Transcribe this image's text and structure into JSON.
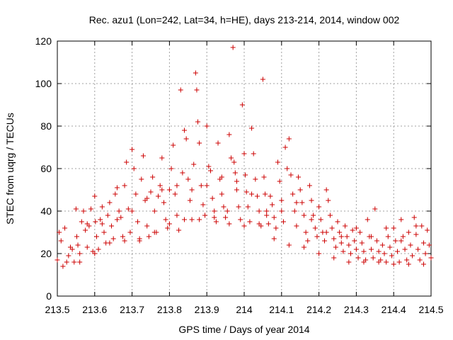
{
  "chart_data": {
    "type": "scatter",
    "title": "Rec. azu1 (Lon=242, Lat=34, h=HE), days 213-214, 2014, window 002",
    "xlabel": "GPS time / Days of year 2014",
    "ylabel": "STEC from uqrg / TECUs",
    "xlim": [
      213.5,
      214.5
    ],
    "ylim": [
      0,
      120
    ],
    "xticks": [
      "213.5",
      "213.6",
      "213.7",
      "213.8",
      "213.9",
      "214",
      "214.1",
      "214.2",
      "214.3",
      "214.4",
      "214.5"
    ],
    "yticks": [
      "0",
      "20",
      "40",
      "60",
      "80",
      "100",
      "120"
    ],
    "grid": true,
    "marker": "plus",
    "color": "#cc0000",
    "series": [
      {
        "points": [
          [
            213.5,
            17
          ],
          [
            213.505,
            30
          ],
          [
            213.51,
            26
          ],
          [
            213.515,
            14
          ],
          [
            213.52,
            32
          ],
          [
            213.525,
            16
          ],
          [
            213.53,
            19
          ],
          [
            213.535,
            23
          ],
          [
            213.54,
            22
          ],
          [
            213.545,
            16
          ],
          [
            213.55,
            41
          ],
          [
            213.552,
            28
          ],
          [
            213.555,
            24
          ],
          [
            213.56,
            20
          ],
          [
            213.565,
            35
          ],
          [
            213.57,
            40
          ],
          [
            213.575,
            31
          ],
          [
            213.58,
            23
          ],
          [
            213.585,
            33
          ],
          [
            213.59,
            41
          ],
          [
            213.595,
            21
          ],
          [
            213.6,
            47
          ],
          [
            213.602,
            35
          ],
          [
            213.605,
            28
          ],
          [
            213.61,
            22
          ],
          [
            213.615,
            36
          ],
          [
            213.62,
            42
          ],
          [
            213.625,
            30
          ],
          [
            213.63,
            25
          ],
          [
            213.635,
            38
          ],
          [
            213.64,
            44
          ],
          [
            213.645,
            33
          ],
          [
            213.65,
            27
          ],
          [
            213.655,
            48
          ],
          [
            213.66,
            51
          ],
          [
            213.665,
            40
          ],
          [
            213.67,
            37
          ],
          [
            213.675,
            28
          ],
          [
            213.68,
            52
          ],
          [
            213.685,
            63
          ],
          [
            213.69,
            41
          ],
          [
            213.695,
            30
          ],
          [
            213.7,
            69
          ],
          [
            213.705,
            60
          ],
          [
            213.71,
            48
          ],
          [
            213.715,
            35
          ],
          [
            213.72,
            27
          ],
          [
            213.725,
            55
          ],
          [
            213.73,
            66
          ],
          [
            213.735,
            45
          ],
          [
            213.74,
            33
          ],
          [
            213.745,
            28
          ],
          [
            213.75,
            49
          ],
          [
            213.755,
            56
          ],
          [
            213.76,
            40
          ],
          [
            213.765,
            30
          ],
          [
            213.77,
            47
          ],
          [
            213.775,
            52
          ],
          [
            213.78,
            65
          ],
          [
            213.785,
            44
          ],
          [
            213.79,
            36
          ],
          [
            213.795,
            32
          ],
          [
            213.8,
            50
          ],
          [
            213.805,
            60
          ],
          [
            213.81,
            71
          ],
          [
            213.815,
            48
          ],
          [
            213.82,
            38
          ],
          [
            213.825,
            31
          ],
          [
            213.83,
            97
          ],
          [
            213.835,
            58
          ],
          [
            213.84,
            78
          ],
          [
            213.845,
            74
          ],
          [
            213.85,
            55
          ],
          [
            213.855,
            45
          ],
          [
            213.86,
            36
          ],
          [
            213.865,
            62
          ],
          [
            213.87,
            105
          ],
          [
            213.873,
            97
          ],
          [
            213.876,
            82
          ],
          [
            213.88,
            72
          ],
          [
            213.885,
            52
          ],
          [
            213.89,
            43
          ],
          [
            213.895,
            38
          ],
          [
            213.9,
            80
          ],
          [
            213.905,
            61
          ],
          [
            213.91,
            59
          ],
          [
            213.915,
            46
          ],
          [
            213.92,
            40
          ],
          [
            213.925,
            35
          ],
          [
            213.93,
            72
          ],
          [
            213.935,
            55
          ],
          [
            213.94,
            48
          ],
          [
            213.945,
            42
          ],
          [
            213.95,
            37
          ],
          [
            213.955,
            40
          ],
          [
            213.96,
            76
          ],
          [
            213.965,
            65
          ],
          [
            213.97,
            117
          ],
          [
            213.973,
            63
          ],
          [
            213.976,
            58
          ],
          [
            213.98,
            50
          ],
          [
            213.985,
            42
          ],
          [
            213.99,
            36
          ],
          [
            213.995,
            90
          ],
          [
            214.0,
            67
          ],
          [
            214.003,
            57
          ],
          [
            214.006,
            49
          ],
          [
            214.01,
            42
          ],
          [
            214.015,
            35
          ],
          [
            214.02,
            79
          ],
          [
            214.025,
            67
          ],
          [
            214.03,
            55
          ],
          [
            214.035,
            47
          ],
          [
            214.04,
            40
          ],
          [
            214.045,
            33
          ],
          [
            214.05,
            102
          ],
          [
            214.053,
            56
          ],
          [
            214.056,
            48
          ],
          [
            214.06,
            38
          ],
          [
            214.065,
            34
          ],
          [
            214.07,
            47
          ],
          [
            214.075,
            43
          ],
          [
            214.08,
            37
          ],
          [
            214.085,
            32
          ],
          [
            214.09,
            63
          ],
          [
            214.095,
            54
          ],
          [
            214.1,
            45
          ],
          [
            214.105,
            35
          ],
          [
            214.11,
            70
          ],
          [
            214.115,
            60
          ],
          [
            214.12,
            74
          ],
          [
            214.125,
            57
          ],
          [
            214.13,
            48
          ],
          [
            214.135,
            40
          ],
          [
            214.14,
            33
          ],
          [
            214.145,
            56
          ],
          [
            214.15,
            50
          ],
          [
            214.155,
            44
          ],
          [
            214.16,
            38
          ],
          [
            214.165,
            30
          ],
          [
            214.17,
            26
          ],
          [
            214.175,
            52
          ],
          [
            214.18,
            45
          ],
          [
            214.185,
            38
          ],
          [
            214.19,
            32
          ],
          [
            214.195,
            28
          ],
          [
            214.2,
            42
          ],
          [
            214.205,
            36
          ],
          [
            214.21,
            30
          ],
          [
            214.215,
            26
          ],
          [
            214.22,
            50
          ],
          [
            214.225,
            45
          ],
          [
            214.23,
            38
          ],
          [
            214.235,
            32
          ],
          [
            214.24,
            27
          ],
          [
            214.245,
            23
          ],
          [
            214.25,
            35
          ],
          [
            214.255,
            30
          ],
          [
            214.26,
            25
          ],
          [
            214.265,
            21
          ],
          [
            214.27,
            33
          ],
          [
            214.275,
            28
          ],
          [
            214.28,
            24
          ],
          [
            214.285,
            20
          ],
          [
            214.29,
            31
          ],
          [
            214.295,
            26
          ],
          [
            214.3,
            22
          ],
          [
            214.305,
            18
          ],
          [
            214.31,
            30
          ],
          [
            214.315,
            25
          ],
          [
            214.32,
            21
          ],
          [
            214.325,
            17
          ],
          [
            214.33,
            36
          ],
          [
            214.335,
            28
          ],
          [
            214.34,
            22
          ],
          [
            214.345,
            18
          ],
          [
            214.35,
            41
          ],
          [
            214.355,
            26
          ],
          [
            214.36,
            21
          ],
          [
            214.365,
            17
          ],
          [
            214.37,
            24
          ],
          [
            214.375,
            20
          ],
          [
            214.38,
            16
          ],
          [
            214.385,
            28
          ],
          [
            214.39,
            23
          ],
          [
            214.395,
            19
          ],
          [
            214.4,
            32
          ],
          [
            214.405,
            26
          ],
          [
            214.41,
            21
          ],
          [
            214.415,
            16
          ],
          [
            214.42,
            36
          ],
          [
            214.425,
            28
          ],
          [
            214.43,
            22
          ],
          [
            214.435,
            17
          ],
          [
            214.44,
            30
          ],
          [
            214.445,
            24
          ],
          [
            214.45,
            19
          ],
          [
            214.455,
            37
          ],
          [
            214.46,
            29
          ],
          [
            214.465,
            22
          ],
          [
            214.47,
            17
          ],
          [
            214.475,
            33
          ],
          [
            214.48,
            25
          ],
          [
            214.485,
            20
          ],
          [
            214.49,
            31
          ],
          [
            214.495,
            24
          ],
          [
            214.5,
            18
          ],
          [
            213.56,
            16
          ],
          [
            213.6,
            20
          ],
          [
            213.64,
            25
          ],
          [
            213.68,
            26
          ],
          [
            213.72,
            26
          ],
          [
            213.76,
            30
          ],
          [
            213.8,
            34
          ],
          [
            213.84,
            36
          ],
          [
            213.88,
            36
          ],
          [
            213.92,
            37
          ],
          [
            213.96,
            34
          ],
          [
            214.0,
            33
          ],
          [
            214.04,
            34
          ],
          [
            214.08,
            27
          ],
          [
            214.12,
            24
          ],
          [
            214.16,
            23
          ],
          [
            214.2,
            20
          ],
          [
            214.24,
            18
          ],
          [
            214.28,
            16
          ],
          [
            214.32,
            16
          ],
          [
            214.36,
            16
          ],
          [
            214.4,
            15
          ],
          [
            214.44,
            15
          ],
          [
            214.48,
            15
          ],
          [
            213.58,
            34
          ],
          [
            213.62,
            34
          ],
          [
            213.66,
            36
          ],
          [
            213.7,
            40
          ],
          [
            213.74,
            46
          ],
          [
            213.78,
            50
          ],
          [
            213.82,
            52
          ],
          [
            213.86,
            50
          ],
          [
            213.9,
            52
          ],
          [
            213.94,
            56
          ],
          [
            213.98,
            54
          ],
          [
            214.02,
            48
          ],
          [
            214.06,
            40
          ],
          [
            214.1,
            40
          ],
          [
            214.14,
            44
          ],
          [
            214.18,
            36
          ],
          [
            214.22,
            30
          ],
          [
            214.26,
            28
          ],
          [
            214.3,
            32
          ],
          [
            214.34,
            28
          ],
          [
            214.38,
            32
          ],
          [
            214.42,
            26
          ],
          [
            214.46,
            33
          ]
        ]
      }
    ]
  }
}
